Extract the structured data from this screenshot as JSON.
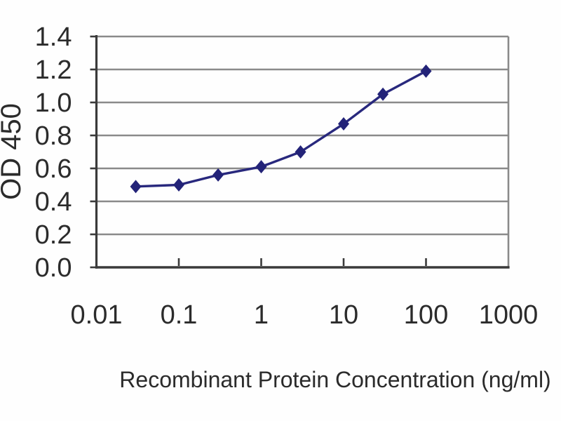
{
  "chart_data": {
    "type": "line",
    "title": "",
    "xlabel": "Recombinant Protein Concentration (ng/ml)",
    "ylabel": "OD 450",
    "x_scale": "log",
    "xlim": [
      0.01,
      1000
    ],
    "x_ticks": [
      0.01,
      0.1,
      1,
      10,
      100,
      1000
    ],
    "x_tick_labels": [
      "0.01",
      "0.1",
      "1",
      "10",
      "100",
      "1000"
    ],
    "x_minor_tick_marks": [
      0.1,
      1,
      10,
      100
    ],
    "ylim": [
      0,
      1.4
    ],
    "y_ticks": [
      0,
      0.2,
      0.4,
      0.6,
      0.8,
      1.0,
      1.2,
      1.4
    ],
    "y_tick_labels": [
      "0.0",
      "0.2",
      "0.4",
      "0.6",
      "0.8",
      "1.0",
      "1.2",
      "1.4"
    ],
    "grid": "horizontal",
    "legend": "none",
    "series": [
      {
        "marker": "diamond",
        "x": [
          0.03,
          0.1,
          0.3,
          1,
          3,
          10,
          30,
          100
        ],
        "y": [
          0.49,
          0.5,
          0.56,
          0.61,
          0.7,
          0.87,
          1.05,
          1.19
        ]
      }
    ]
  },
  "colors": {
    "background": "#fefefe",
    "gridline": "#8a8a8a",
    "plot_border": "#8a8a8a",
    "axis": "#3a3a3a",
    "line": "#28287d",
    "marker": "#232378",
    "text": "#2b2b2b"
  }
}
